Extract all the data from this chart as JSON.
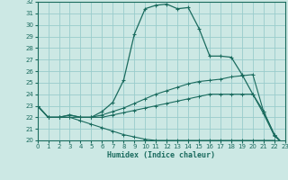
{
  "xlabel": "Humidex (Indice chaleur)",
  "bg_color": "#cce8e4",
  "line_color": "#1a6b5e",
  "grid_color": "#99cccc",
  "xmin": 0,
  "xmax": 23,
  "ymin": 20,
  "ymax": 32,
  "xticks": [
    0,
    1,
    2,
    3,
    4,
    5,
    6,
    7,
    8,
    9,
    10,
    11,
    12,
    13,
    14,
    15,
    16,
    17,
    18,
    19,
    20,
    21,
    22,
    23
  ],
  "yticks": [
    20,
    21,
    22,
    23,
    24,
    25,
    26,
    27,
    28,
    29,
    30,
    31,
    32
  ],
  "curve1_x": [
    0,
    1,
    2,
    3,
    4,
    5,
    6,
    7,
    8,
    9,
    10,
    11,
    12,
    13,
    14,
    15,
    16,
    17,
    18,
    19,
    20,
    21,
    22,
    23
  ],
  "curve1_y": [
    23.0,
    22.0,
    22.0,
    22.2,
    22.0,
    22.0,
    22.5,
    23.3,
    25.2,
    29.2,
    31.4,
    31.7,
    31.8,
    31.4,
    31.5,
    29.7,
    27.3,
    27.3,
    27.2,
    25.7,
    24.0,
    22.5,
    20.5,
    19.5
  ],
  "curve2_x": [
    0,
    1,
    2,
    3,
    4,
    5,
    6,
    7,
    8,
    9,
    10,
    11,
    12,
    13,
    14,
    15,
    16,
    17,
    18,
    19,
    20,
    21,
    22,
    23
  ],
  "curve2_y": [
    23.0,
    22.0,
    22.0,
    22.2,
    22.0,
    22.0,
    22.2,
    22.5,
    22.8,
    23.2,
    23.6,
    24.0,
    24.3,
    24.6,
    24.9,
    25.1,
    25.2,
    25.3,
    25.5,
    25.6,
    25.7,
    22.5,
    20.5,
    19.5
  ],
  "curve3_x": [
    0,
    1,
    2,
    3,
    4,
    5,
    6,
    7,
    8,
    9,
    10,
    11,
    12,
    13,
    14,
    15,
    16,
    17,
    18,
    19,
    20,
    21,
    22,
    23
  ],
  "curve3_y": [
    23.0,
    22.0,
    22.0,
    22.0,
    22.0,
    22.0,
    22.0,
    22.2,
    22.4,
    22.6,
    22.8,
    23.0,
    23.2,
    23.4,
    23.6,
    23.8,
    24.0,
    24.0,
    24.0,
    24.0,
    24.0,
    22.3,
    20.4,
    19.5
  ],
  "curve4_x": [
    0,
    1,
    2,
    3,
    4,
    5,
    6,
    7,
    8,
    9,
    10,
    11,
    12,
    13,
    14,
    15,
    16,
    17,
    18,
    19,
    20,
    21,
    22,
    23
  ],
  "curve4_y": [
    23.0,
    22.0,
    22.0,
    22.0,
    21.7,
    21.4,
    21.1,
    20.8,
    20.5,
    20.3,
    20.1,
    20.0,
    20.0,
    20.0,
    20.0,
    20.0,
    20.0,
    20.0,
    20.0,
    20.0,
    20.0,
    20.0,
    20.0,
    19.5
  ]
}
